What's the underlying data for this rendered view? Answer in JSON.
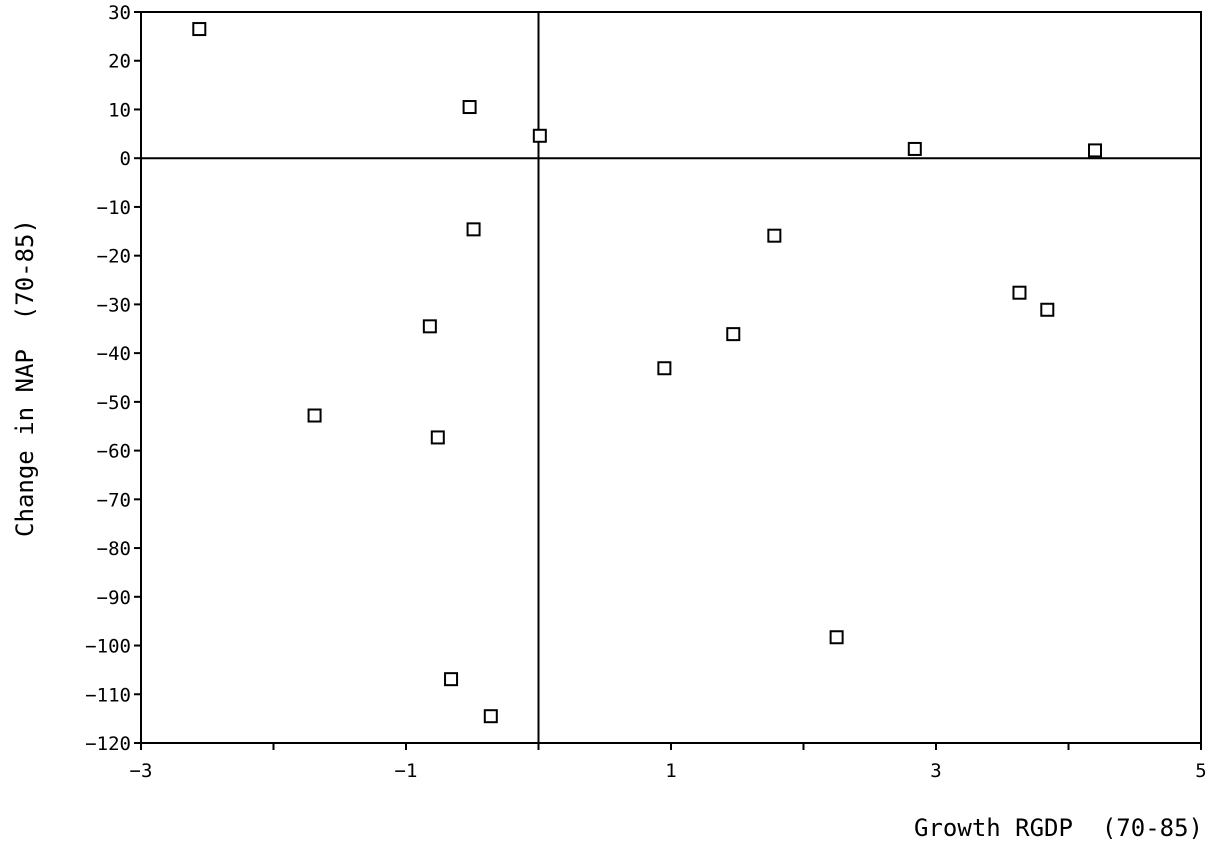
{
  "chart_data": {
    "type": "scatter",
    "title": "",
    "xlabel": "Growth RGDP  (70-85)",
    "ylabel": "Change in NAP  (70-85)",
    "xlim": [
      -3,
      5
    ],
    "ylim": [
      -120,
      30
    ],
    "xticks": [
      -3,
      -2,
      -1,
      0,
      1,
      2,
      3,
      4,
      5
    ],
    "xtick_labels": [
      "−3",
      "",
      "−1",
      "",
      "1",
      "",
      "3",
      "",
      "5"
    ],
    "yticks": [
      30,
      20,
      10,
      0,
      -10,
      -20,
      -30,
      -40,
      -50,
      -60,
      -70,
      -80,
      -90,
      -100,
      -110,
      -120
    ],
    "ytick_labels": [
      "30",
      "20",
      "10",
      "0",
      "−10",
      "−20",
      "−30",
      "−40",
      "−50",
      "−60",
      "−70",
      "−80",
      "−90",
      "−100",
      "−110",
      "−120"
    ],
    "reference_lines": {
      "x": 0,
      "y": 0
    },
    "grid": false,
    "legend": "none",
    "marker": "open-square",
    "series": [
      {
        "points": [
          {
            "x": -2.56,
            "y": 26.5
          },
          {
            "x": -0.52,
            "y": 10.5
          },
          {
            "x": 0.01,
            "y": 4.6
          },
          {
            "x": 2.84,
            "y": 1.9
          },
          {
            "x": 4.2,
            "y": 1.6
          },
          {
            "x": -0.49,
            "y": -14.6
          },
          {
            "x": 1.78,
            "y": -15.9
          },
          {
            "x": 3.63,
            "y": -27.6
          },
          {
            "x": 3.84,
            "y": -31.1
          },
          {
            "x": -0.82,
            "y": -34.5
          },
          {
            "x": 1.47,
            "y": -36.1
          },
          {
            "x": 0.95,
            "y": -43.1
          },
          {
            "x": -1.69,
            "y": -52.8
          },
          {
            "x": -0.76,
            "y": -57.3
          },
          {
            "x": 2.25,
            "y": -98.3
          },
          {
            "x": -0.66,
            "y": -106.9
          },
          {
            "x": -0.36,
            "y": -114.5
          }
        ]
      }
    ]
  }
}
